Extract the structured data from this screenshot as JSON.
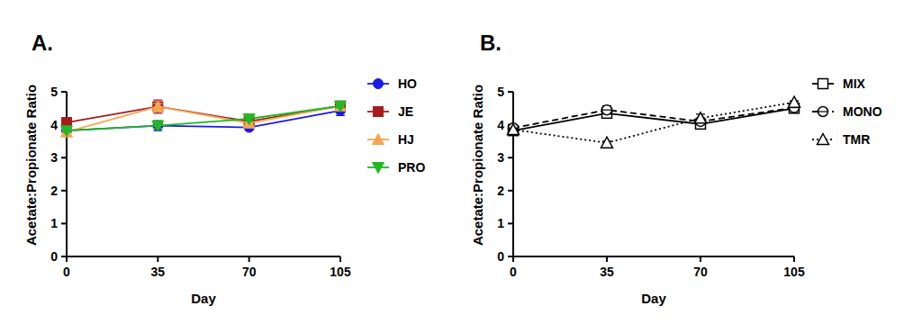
{
  "chart_data": [
    {
      "type": "line",
      "title": "A.",
      "x_label": "Day",
      "y_label": "Acetate:Propionate Ratio",
      "x": [
        0,
        35,
        70,
        105
      ],
      "xlim": [
        0,
        105
      ],
      "xticks": [
        0,
        35,
        70,
        105
      ],
      "ylim": [
        0,
        5
      ],
      "yticks": [
        0,
        1,
        2,
        3,
        4,
        5
      ],
      "grid": false,
      "legend": "right",
      "series": [
        {
          "name": "HO",
          "color": "#1a1ae6",
          "marker": "circle",
          "line_style": "solid",
          "values": [
            3.82,
            3.97,
            3.92,
            4.43
          ],
          "errors": [
            0.05,
            0.15,
            0.05,
            0.15
          ]
        },
        {
          "name": "JE",
          "color": "#a51c1c",
          "marker": "square",
          "line_style": "solid",
          "values": [
            4.07,
            4.55,
            4.1,
            4.57
          ],
          "errors": [
            0.05,
            0.2,
            0.08,
            0.06
          ]
        },
        {
          "name": "HJ",
          "color": "#f5a652",
          "marker": "triangle",
          "line_style": "solid",
          "values": [
            3.78,
            4.55,
            4.05,
            4.57
          ],
          "errors": [
            0.04,
            0.1,
            0.06,
            0.05
          ]
        },
        {
          "name": "PRO",
          "color": "#22b822",
          "marker": "triangle-down",
          "line_style": "solid",
          "values": [
            3.82,
            3.97,
            4.18,
            4.57
          ],
          "errors": [
            0.04,
            0.08,
            0.08,
            0.05
          ]
        }
      ]
    },
    {
      "type": "line",
      "title": "B.",
      "x_label": "Day",
      "y_label": "Acetate:Propionate Ratio",
      "x": [
        0,
        35,
        70,
        105
      ],
      "xlim": [
        0,
        105
      ],
      "xticks": [
        0,
        35,
        70,
        105
      ],
      "ylim": [
        0,
        5
      ],
      "yticks": [
        0,
        1,
        2,
        3,
        4,
        5
      ],
      "grid": false,
      "legend": "right",
      "series": [
        {
          "name": "MIX",
          "color": "#000000",
          "marker": "square-open",
          "line_style": "solid",
          "values": [
            3.82,
            4.35,
            4.02,
            4.5
          ],
          "errors": [
            0.05,
            0.1,
            0.05,
            0.05
          ]
        },
        {
          "name": "MONO",
          "color": "#000000",
          "marker": "circle-open",
          "line_style": "dashed",
          "values": [
            3.9,
            4.45,
            4.1,
            4.52
          ],
          "errors": [
            0.05,
            0.12,
            0.06,
            0.05
          ]
        },
        {
          "name": "TMR",
          "color": "#000000",
          "marker": "triangle-open",
          "line_style": "dotted",
          "values": [
            3.85,
            3.45,
            4.2,
            4.68
          ],
          "errors": [
            0.03,
            0.05,
            0.12,
            0.04
          ]
        }
      ]
    }
  ]
}
